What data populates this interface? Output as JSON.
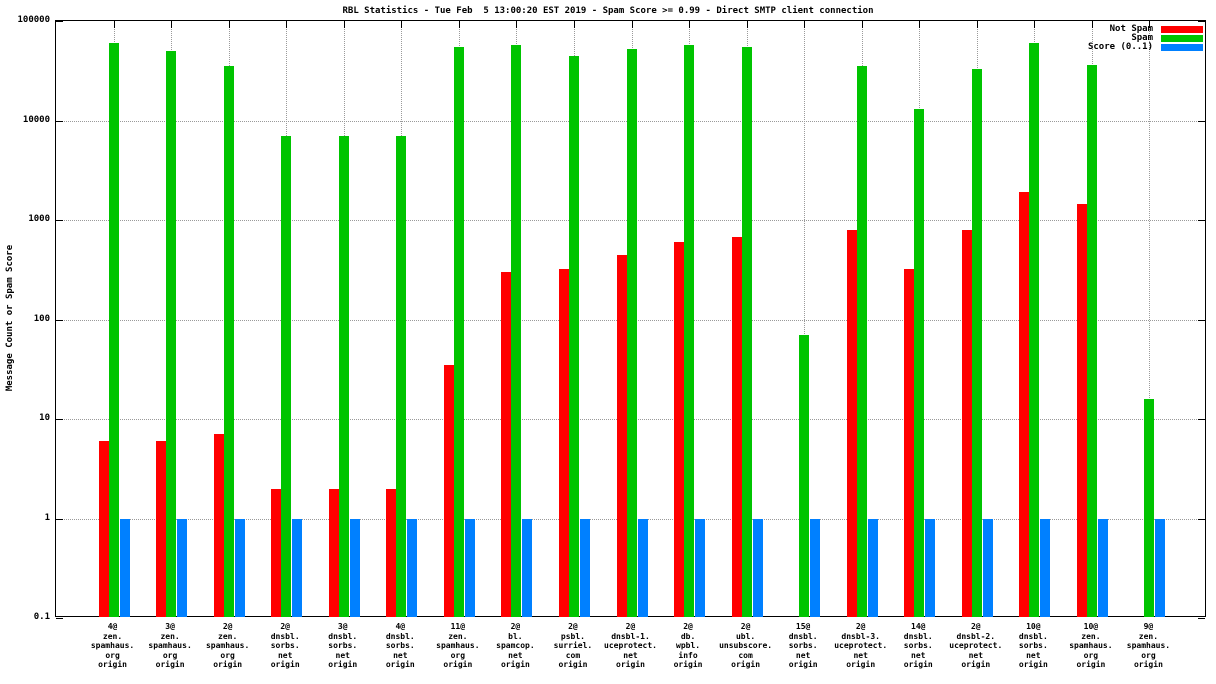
{
  "chart_data": {
    "type": "bar",
    "title": "RBL Statistics - Tue Feb  5 13:00:20 EST 2019 - Spam Score >= 0.99 - Direct SMTP client connection",
    "ylabel": "Message Count or Spam Score",
    "scale": "log10",
    "ylim": [
      0.1,
      100000
    ],
    "yticks": [
      0.1,
      1,
      10,
      100,
      1000,
      10000,
      100000
    ],
    "ytick_labels": [
      "0.1",
      "1",
      "10",
      "100",
      "1000",
      "10000",
      "100000"
    ],
    "grid": true,
    "legend_position": "top-right",
    "categories": [
      [
        "4@",
        "zen.",
        "spamhaus.",
        "org",
        "origin"
      ],
      [
        "3@",
        "zen.",
        "spamhaus.",
        "org",
        "origin"
      ],
      [
        "2@",
        "zen.",
        "spamhaus.",
        "org",
        "origin"
      ],
      [
        "2@",
        "dnsbl.",
        "sorbs.",
        "net",
        "origin"
      ],
      [
        "3@",
        "dnsbl.",
        "sorbs.",
        "net",
        "origin"
      ],
      [
        "4@",
        "dnsbl.",
        "sorbs.",
        "net",
        "origin"
      ],
      [
        "11@",
        "zen.",
        "spamhaus.",
        "org",
        "origin"
      ],
      [
        "2@",
        "bl.",
        "spamcop.",
        "net",
        "origin"
      ],
      [
        "2@",
        "psbl.",
        "surriel.",
        "com",
        "origin"
      ],
      [
        "2@",
        "dnsbl-1.",
        "uceprotect.",
        "net",
        "origin"
      ],
      [
        "2@",
        "db.",
        "wpbl.",
        "info",
        "origin"
      ],
      [
        "2@",
        "ubl.",
        "unsubscore.",
        "com",
        "origin"
      ],
      [
        "15@",
        "dnsbl.",
        "sorbs.",
        "net",
        "origin"
      ],
      [
        "2@",
        "dnsbl-3.",
        "uceprotect.",
        "net",
        "origin"
      ],
      [
        "14@",
        "dnsbl.",
        "sorbs.",
        "net",
        "origin"
      ],
      [
        "2@",
        "dnsbl-2.",
        "uceprotect.",
        "net",
        "origin"
      ],
      [
        "10@",
        "dnsbl.",
        "sorbs.",
        "net",
        "origin"
      ],
      [
        "10@",
        "zen.",
        "spamhaus.",
        "org",
        "origin"
      ],
      [
        "9@",
        "zen.",
        "spamhaus.",
        "org",
        "origin"
      ]
    ],
    "series": [
      {
        "name": "Not Spam",
        "color": "#ff0000",
        "values": [
          6,
          6,
          7,
          2,
          2,
          2,
          35,
          300,
          320,
          450,
          600,
          680,
          null,
          800,
          320,
          800,
          1900,
          1450,
          null
        ]
      },
      {
        "name": "Spam",
        "color": "#00c400",
        "values": [
          60000,
          50000,
          35000,
          7000,
          7000,
          7000,
          55000,
          58000,
          45000,
          52000,
          57000,
          55000,
          70,
          35000,
          13000,
          33000,
          60000,
          36000,
          16
        ]
      },
      {
        "name": "Score (0..1)",
        "color": "#0080ff",
        "values": [
          1,
          1,
          1,
          1,
          1,
          1,
          1,
          1,
          1,
          1,
          1,
          1,
          1,
          1,
          1,
          1,
          1,
          1,
          1
        ]
      }
    ]
  }
}
